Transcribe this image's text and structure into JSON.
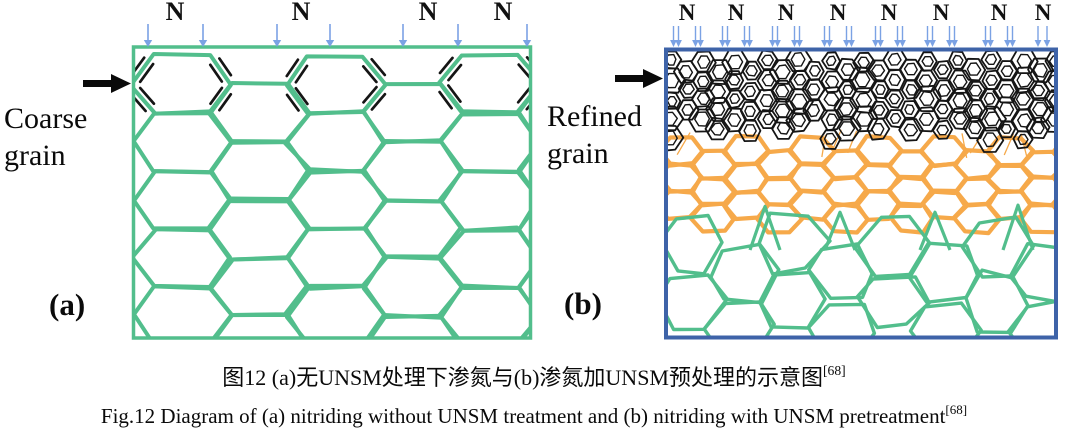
{
  "panel_a": {
    "letter": "(a)",
    "side_label": [
      "Coarse",
      "grain"
    ],
    "n_labels": [
      "N",
      "N",
      "N",
      "N"
    ],
    "colors": {
      "grain": "#52BE8C",
      "border": "#52BE8C",
      "nitride_hatch": "#151515",
      "nitrogen_arrow": "#7BA2E4",
      "pointer_arrow": "#0a0a0a",
      "text": "#0a0a0a"
    }
  },
  "panel_b": {
    "letter": "(b)",
    "side_label": [
      "Refined",
      "grain"
    ],
    "n_labels": [
      "N",
      "N",
      "N",
      "N",
      "N",
      "N",
      "N",
      "N"
    ],
    "colors": {
      "surface_grain": "#151515",
      "intermediate_grain": "#F6A94A",
      "core_grain": "#52BE8C",
      "border": "#3E63A8",
      "nitrogen_arrow": "#7BA2E4",
      "pointer_arrow": "#0a0a0a",
      "text": "#0a0a0a"
    }
  },
  "captions": {
    "zh": "图12 (a)无UNSM处理下渗氮与(b)渗氮加UNSM预处理的示意图",
    "zh_ref": "[68]",
    "en": "Fig.12 Diagram of (a) nitriding without UNSM treatment and (b) nitriding with UNSM pretreatment",
    "en_ref": "[68]"
  }
}
